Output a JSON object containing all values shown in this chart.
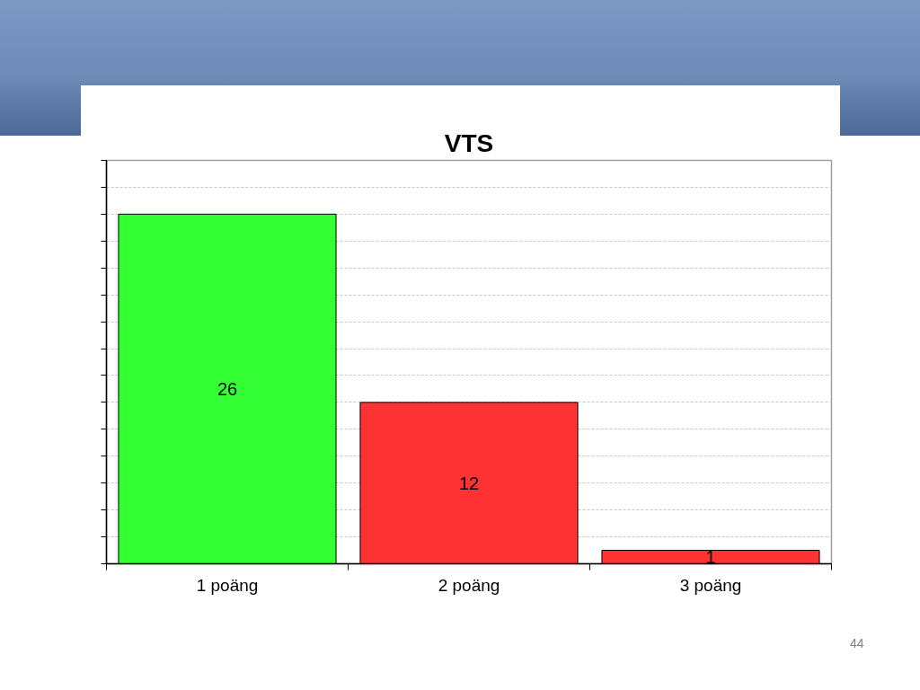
{
  "chart_data": {
    "type": "bar",
    "title": "VTS",
    "categories": [
      "1 poäng",
      "2 poäng",
      "3 poäng"
    ],
    "values": [
      26,
      12,
      1
    ],
    "colors": [
      "#33ff33",
      "#ff3333",
      "#ff3333"
    ],
    "ylim": [
      0,
      30
    ],
    "yticks": [
      {
        "value": 0,
        "label": null
      },
      {
        "value": 2,
        "label": null
      },
      {
        "value": 4,
        "label": null
      },
      {
        "value": 6,
        "label": null
      },
      {
        "value": 8,
        "label": null
      },
      {
        "value": 10,
        "label": null
      },
      {
        "value": 12,
        "label": null
      },
      {
        "value": 14,
        "label": null
      },
      {
        "value": 16,
        "label": null
      },
      {
        "value": 18,
        "label": null
      },
      {
        "value": 20,
        "label": null
      },
      {
        "value": 22,
        "label": null
      },
      {
        "value": 24,
        "label": null
      },
      {
        "value": 26,
        "label": null
      },
      {
        "value": 28,
        "label": null
      },
      {
        "value": 30,
        "label": null
      }
    ],
    "tick_labels": "x",
    "grid": "y",
    "data_labels": true,
    "annotations": [
      "44"
    ]
  }
}
